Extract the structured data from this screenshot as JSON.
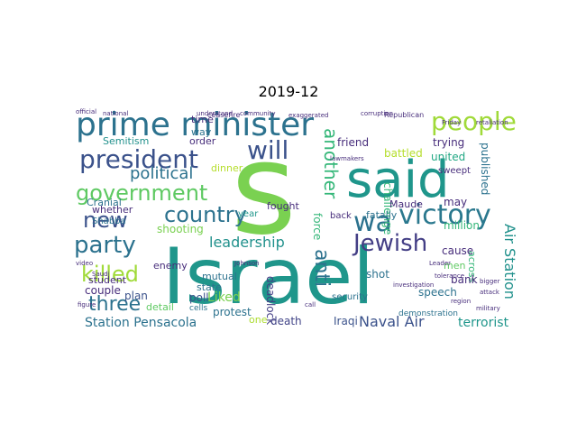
{
  "title": "2019-12",
  "words": [
    {
      "text": "Israel",
      "color": "#1f968b"
    },
    {
      "text": "s",
      "color": "#7ad151"
    },
    {
      "text": "said",
      "color": "#1f968b"
    },
    {
      "text": "prime minister",
      "color": "#2c728e"
    },
    {
      "text": "president",
      "color": "#3b528b"
    },
    {
      "text": "government",
      "color": "#5ec962"
    },
    {
      "text": "party",
      "color": "#2c728e"
    },
    {
      "text": "victory",
      "color": "#2a788e"
    },
    {
      "text": "people",
      "color": "#a0da39"
    },
    {
      "text": "country",
      "color": "#2c728e"
    },
    {
      "text": "new",
      "color": "#3b528b"
    },
    {
      "text": "will",
      "color": "#3b528b"
    },
    {
      "text": "wa",
      "color": "#2c728e"
    },
    {
      "text": "another",
      "color": "#35b779"
    },
    {
      "text": "Jewish",
      "color": "#433e85"
    },
    {
      "text": "anti",
      "color": "#2c728e"
    },
    {
      "text": "killed",
      "color": "#a0da39"
    },
    {
      "text": "three",
      "color": "#2c728e"
    },
    {
      "text": "political",
      "color": "#2c728e"
    },
    {
      "text": "leadership",
      "color": "#21918c"
    },
    {
      "text": "Naval Air",
      "color": "#3b528b"
    },
    {
      "text": "Air Station",
      "color": "#21918c"
    },
    {
      "text": "Liked",
      "color": "#7ad151"
    },
    {
      "text": "Station Pensacola",
      "color": "#2c728e"
    },
    {
      "text": "terrorist",
      "color": "#1f968b"
    },
    {
      "text": "deadlock",
      "color": "#433e85"
    },
    {
      "text": "force",
      "color": "#35b779"
    },
    {
      "text": "trying",
      "color": "#472d7b"
    },
    {
      "text": "united",
      "color": "#22a884"
    },
    {
      "text": "battled",
      "color": "#b5de2b"
    },
    {
      "text": "friend",
      "color": "#472d7b"
    },
    {
      "text": "published",
      "color": "#2c728e"
    },
    {
      "text": "challenge",
      "color": "#35b779"
    },
    {
      "text": "fatally",
      "color": "#2c728e"
    },
    {
      "text": "million",
      "color": "#35b779"
    },
    {
      "text": "may",
      "color": "#472d7b"
    },
    {
      "text": "shot",
      "color": "#2c728e"
    },
    {
      "text": "speech",
      "color": "#2c728e"
    },
    {
      "text": "across",
      "color": "#35b779"
    },
    {
      "text": "bank",
      "color": "#472d7b"
    },
    {
      "text": "cause",
      "color": "#472d7b"
    },
    {
      "text": "men",
      "color": "#5ec962"
    },
    {
      "text": "death",
      "color": "#414487"
    },
    {
      "text": "Iraqi",
      "color": "#3b528b"
    },
    {
      "text": "one",
      "color": "#addc30"
    },
    {
      "text": "protest",
      "color": "#2c728e"
    },
    {
      "text": "poll",
      "color": "#3b528b"
    },
    {
      "text": "mutual",
      "color": "#2c728e"
    },
    {
      "text": "state",
      "color": "#2c728e"
    },
    {
      "text": "couple",
      "color": "#472d7b"
    },
    {
      "text": "plan",
      "color": "#3b528b"
    },
    {
      "text": "detail",
      "color": "#5ec962"
    },
    {
      "text": "student",
      "color": "#472d7b"
    },
    {
      "text": "enemy",
      "color": "#472d7b"
    },
    {
      "text": "shooting",
      "color": "#7ad151"
    },
    {
      "text": "whether",
      "color": "#472d7b"
    },
    {
      "text": "Shabba",
      "color": "#2c728e"
    },
    {
      "text": "Cranial",
      "color": "#2c728e"
    },
    {
      "text": "Semitism",
      "color": "#21918c"
    },
    {
      "text": "order",
      "color": "#472d7b"
    },
    {
      "text": "time",
      "color": "#472d7b"
    },
    {
      "text": "way",
      "color": "#2c728e"
    },
    {
      "text": "Maude",
      "color": "#472d7b"
    },
    {
      "text": "fought",
      "color": "#472d7b"
    },
    {
      "text": "year",
      "color": "#1f968b"
    },
    {
      "text": "back",
      "color": "#472d7b"
    },
    {
      "text": "dinner",
      "color": "#b5de2b"
    },
    {
      "text": "sweept",
      "color": "#472d7b"
    },
    {
      "text": "security",
      "color": "#2c728e"
    },
    {
      "text": "demonstration",
      "color": "#2c728e"
    },
    {
      "text": "cells",
      "color": "#2c728e"
    },
    {
      "text": "ceasefire",
      "color": "#472d7b"
    },
    {
      "text": "Republican",
      "color": "#472d7b"
    },
    {
      "text": "national",
      "color": "#472d7b"
    },
    {
      "text": "exaggerated",
      "color": "#472d7b"
    },
    {
      "text": "understand",
      "color": "#472d7b"
    },
    {
      "text": "corruption",
      "color": "#472d7b"
    },
    {
      "text": "Friday",
      "color": "#472d7b"
    },
    {
      "text": "Johnson",
      "color": "#472d7b"
    },
    {
      "text": "investigation",
      "color": "#472d7b"
    },
    {
      "text": "community",
      "color": "#472d7b"
    },
    {
      "text": "Leader",
      "color": "#472d7b"
    },
    {
      "text": "bigger",
      "color": "#472d7b"
    },
    {
      "text": "attack",
      "color": "#472d7b"
    },
    {
      "text": "call",
      "color": "#472d7b"
    },
    {
      "text": "figure",
      "color": "#472d7b"
    },
    {
      "text": "tolerance",
      "color": "#472d7b"
    },
    {
      "text": "region",
      "color": "#472d7b"
    },
    {
      "text": "military",
      "color": "#472d7b"
    },
    {
      "text": "video",
      "color": "#472d7b"
    },
    {
      "text": "lawmakers",
      "color": "#472d7b"
    },
    {
      "text": "retaliation",
      "color": "#472d7b"
    },
    {
      "text": "Saudi",
      "color": "#472d7b"
    },
    {
      "text": "official",
      "color": "#472d7b"
    }
  ]
}
